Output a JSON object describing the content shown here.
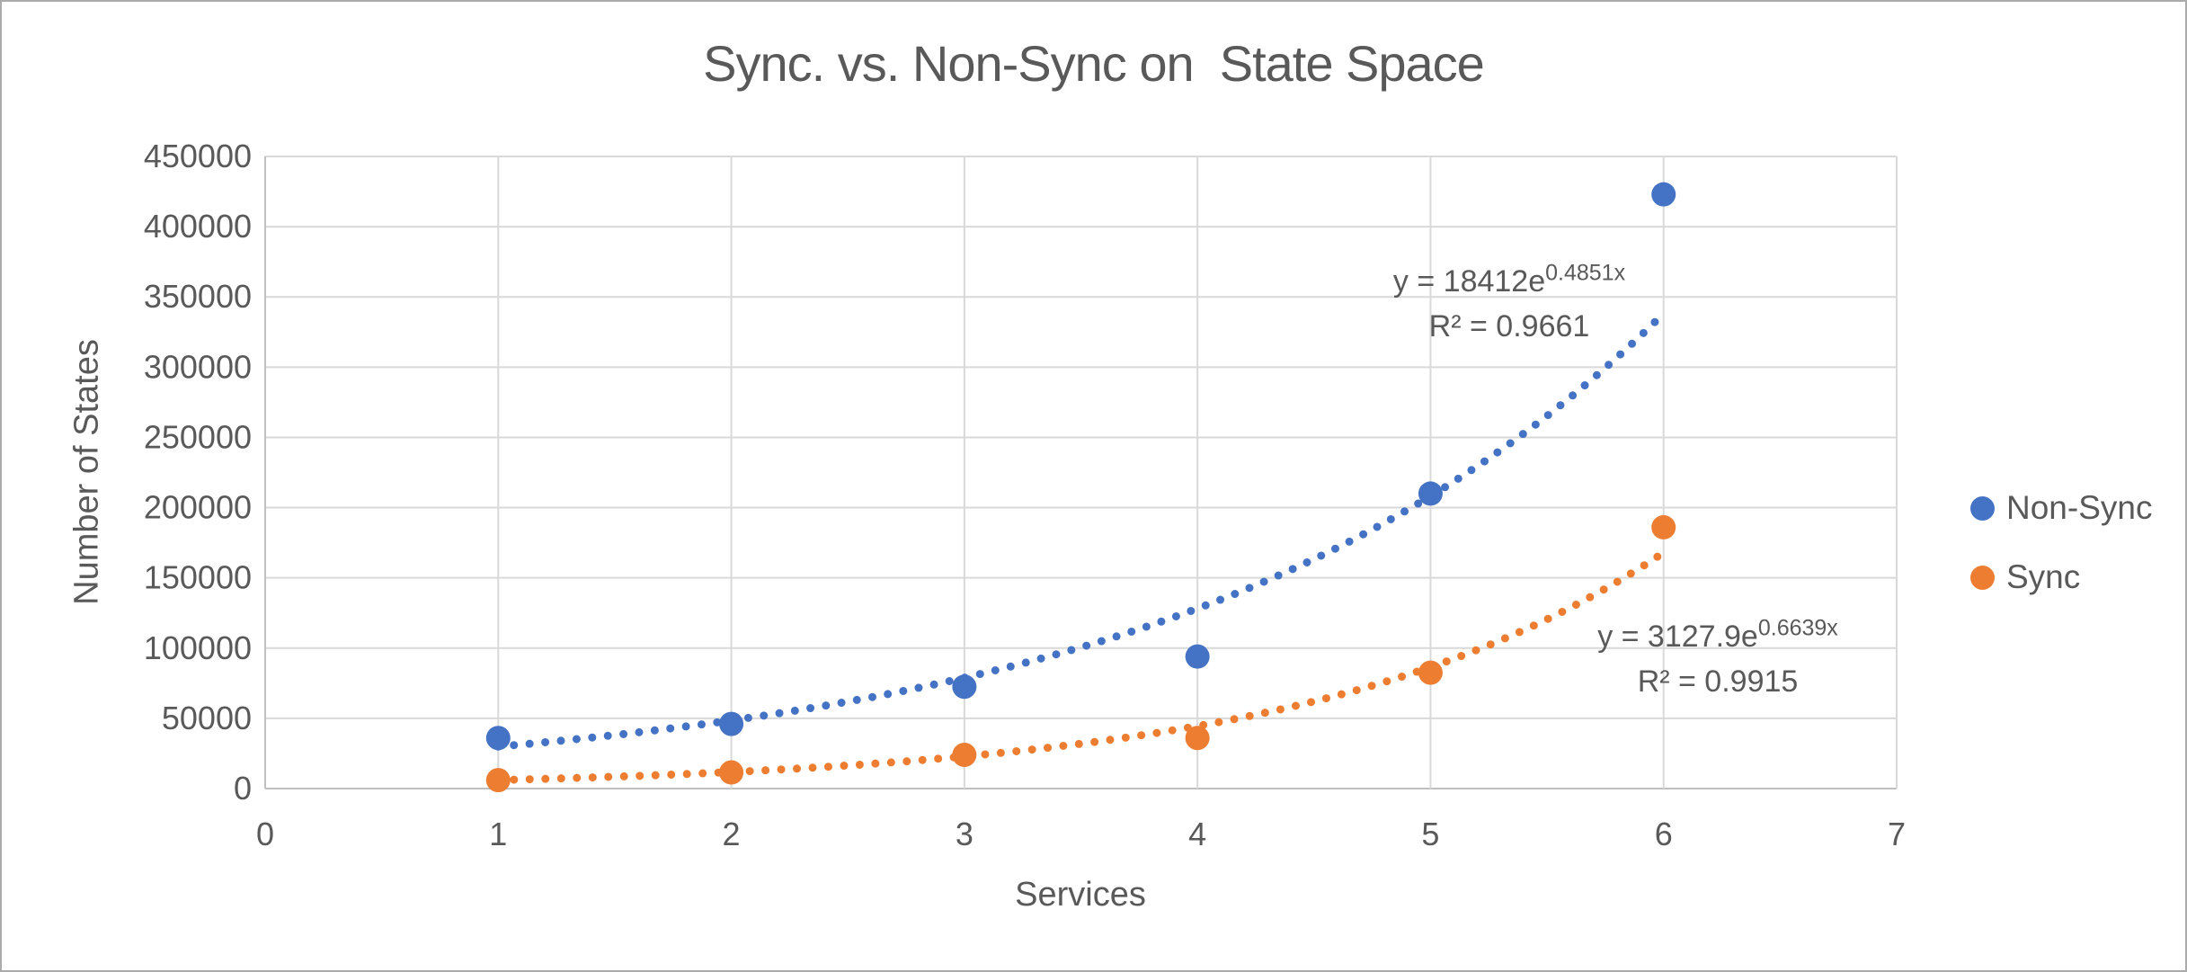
{
  "chart_data": {
    "type": "scatter",
    "title": "Sync. vs. Non-Sync on  State Space",
    "xlabel": "Services",
    "ylabel": "Number of States",
    "x": [
      1,
      2,
      3,
      4,
      5,
      6
    ],
    "series": [
      {
        "name": "Non-Sync",
        "color": "#4472C4",
        "values": [
          36000,
          46000,
          72500,
          94000,
          210000,
          423000
        ],
        "trendline": {
          "type": "exponential",
          "a": 18412,
          "b": 0.4851,
          "equation_base": "y = 18412e",
          "equation_exp": "0.4851x",
          "r2": "R² = 0.9661",
          "x_range": [
            1,
            6
          ]
        }
      },
      {
        "name": "Sync",
        "color": "#ED7D31",
        "values": [
          6000,
          11500,
          24000,
          36000,
          82500,
          186000
        ],
        "trendline": {
          "type": "exponential",
          "a": 3127.9,
          "b": 0.6639,
          "equation_base": "y = 3127.9e",
          "equation_exp": "0.6639x",
          "r2": "R² = 0.9915",
          "x_range": [
            1,
            6
          ]
        }
      }
    ],
    "xlim": [
      0,
      7
    ],
    "ylim": [
      0,
      450000
    ],
    "x_ticks": [
      0,
      1,
      2,
      3,
      4,
      5,
      6,
      7
    ],
    "y_ticks": [
      0,
      50000,
      100000,
      150000,
      200000,
      250000,
      300000,
      350000,
      400000,
      450000
    ],
    "grid": true,
    "legend_position": "right"
  },
  "colors": {
    "text": "#595959",
    "gridline": "#D9D9D9",
    "axis": "#BFBFBF",
    "background": "#FFFFFF",
    "frame_border": "#ABABAB"
  }
}
